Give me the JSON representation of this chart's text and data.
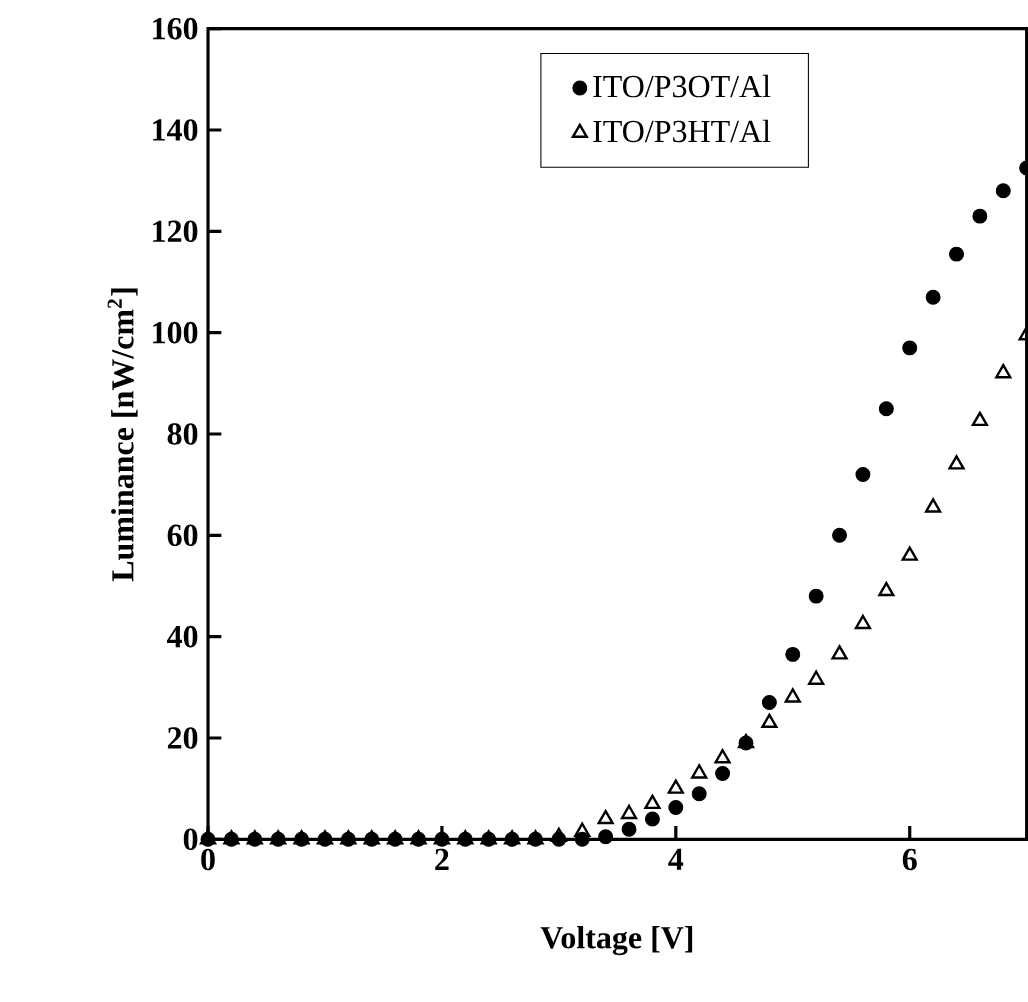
{
  "chart_data": {
    "type": "scatter",
    "xlabel": "Voltage [V]",
    "ylabel": "Luminance [nW/cm$^{2}$]",
    "x": [
      0,
      0.2,
      0.4,
      0.6,
      0.8,
      1.0,
      1.2,
      1.4,
      1.6,
      1.8,
      2.0,
      2.2,
      2.4,
      2.6,
      2.8,
      3.0,
      3.2,
      3.4,
      3.6,
      3.8,
      4.0,
      4.2,
      4.4,
      4.6,
      4.8,
      5.0,
      5.2,
      5.4,
      5.6,
      5.8,
      6.0,
      6.2,
      6.4,
      6.6,
      6.8,
      7.0
    ],
    "series": [
      {
        "name": "ITO/P3OT/Al",
        "color": "#000000",
        "marker": "circle",
        "values": [
          0,
          0,
          0,
          0,
          0,
          0,
          0,
          0,
          0,
          0,
          0,
          0,
          0,
          0,
          0,
          0,
          0,
          0.5,
          2,
          4,
          6.3,
          9,
          13,
          19,
          27,
          36.5,
          48,
          60,
          72,
          85,
          97,
          107,
          115.5,
          123,
          128,
          132.5
        ]
      },
      {
        "name": "ITO/P3HT/Al",
        "color": "#000000",
        "marker": "triangle",
        "values": [
          0,
          0,
          0,
          0,
          0,
          0,
          0,
          0,
          0,
          0,
          0,
          0,
          0,
          0,
          0,
          0.5,
          1.5,
          4,
          5,
          7,
          10,
          13,
          16,
          19,
          23,
          28,
          31.5,
          36.5,
          42.5,
          49,
          56,
          65.5,
          74,
          82.6,
          92,
          99.5
        ]
      }
    ],
    "xlim": [
      0,
      7
    ],
    "xticks": [
      0,
      2,
      4,
      6
    ],
    "ylim": [
      0,
      160
    ],
    "yticks": [
      0,
      20,
      40,
      60,
      80,
      100,
      120,
      140,
      160
    ],
    "grid": false,
    "legend": "top"
  }
}
